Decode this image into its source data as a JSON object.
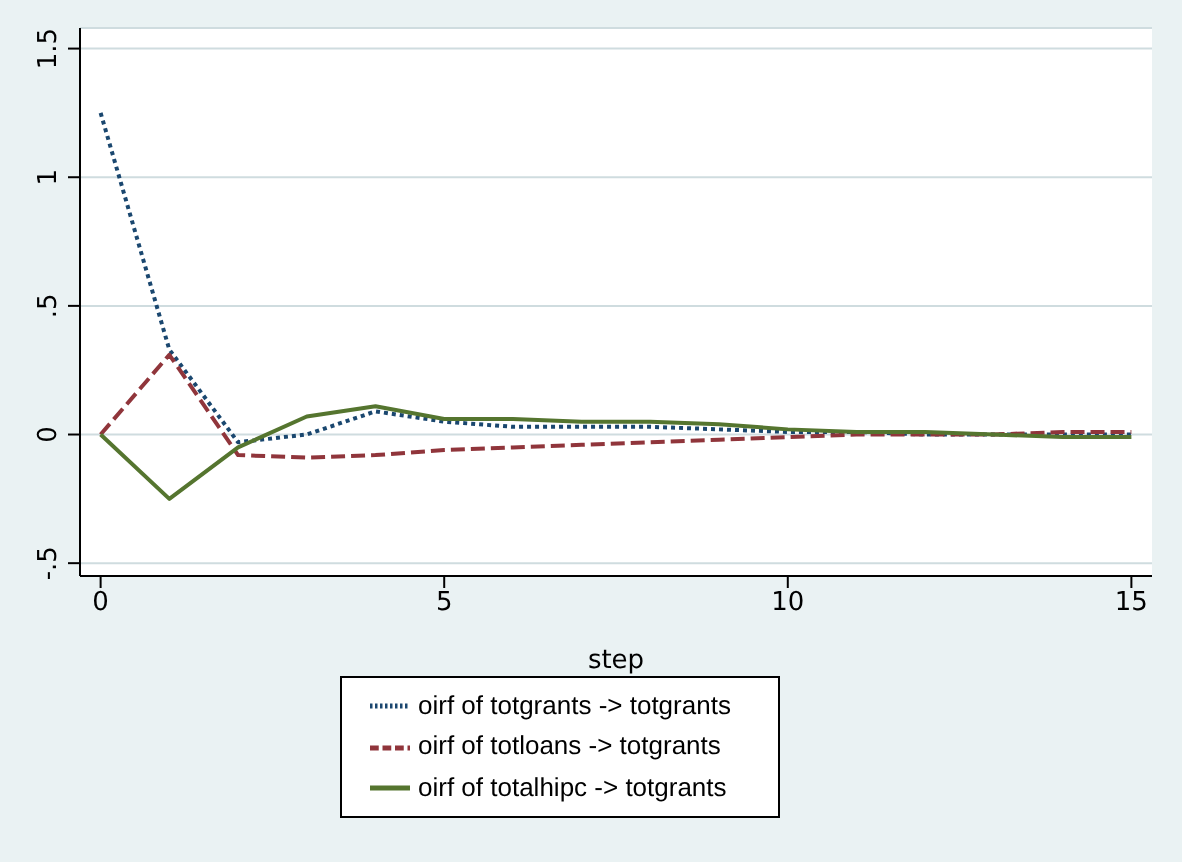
{
  "chart_data": {
    "type": "line",
    "xlabel": "step",
    "x": [
      0,
      1,
      2,
      3,
      4,
      5,
      6,
      7,
      8,
      9,
      10,
      11,
      12,
      13,
      14,
      15
    ],
    "xlim": [
      -0.3,
      15.3
    ],
    "xticks": [
      0,
      5,
      10,
      15
    ],
    "ylim": [
      -0.55,
      1.58
    ],
    "yticks": [
      {
        "value": -0.5,
        "label": "-.5"
      },
      0,
      {
        "value": 0.5,
        "label": ".5"
      },
      1,
      1.5
    ],
    "grid": "y",
    "legend": "bottom",
    "marker": "none",
    "series": [
      {
        "name": "oirf of totgrants -> totgrants",
        "color": "#1a476f",
        "line_style": "dotted",
        "values": [
          1.25,
          0.33,
          -0.03,
          0.0,
          0.09,
          0.05,
          0.03,
          0.03,
          0.03,
          0.02,
          0.01,
          0.01,
          0.0,
          0.0,
          0.0,
          0.0
        ]
      },
      {
        "name": "oirf of totloans -> totgrants",
        "color": "#90353b",
        "line_style": "dashed",
        "values": [
          0,
          0.31,
          -0.08,
          -0.09,
          -0.08,
          -0.06,
          -0.05,
          -0.04,
          -0.03,
          -0.02,
          -0.01,
          0,
          0,
          0,
          0.01,
          0.01
        ]
      },
      {
        "name": "oirf of totalhipc -> totgrants",
        "color": "#55752f",
        "line_style": "solid",
        "values": [
          0,
          -0.25,
          -0.05,
          0.07,
          0.11,
          0.06,
          0.06,
          0.05,
          0.05,
          0.04,
          0.02,
          0.01,
          0.01,
          0,
          -0.01,
          -0.01
        ]
      }
    ]
  }
}
